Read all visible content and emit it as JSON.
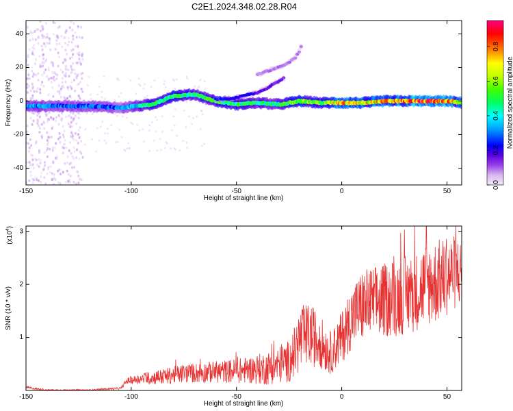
{
  "figure": {
    "title": "C2E1.2024.348.02.28.R04"
  },
  "chart_data": [
    {
      "type": "heatmap",
      "title": "C2E1.2024.348.02.28.R04",
      "xlabel": "Height of straight line (km)",
      "ylabel": "Frequency (Hz)",
      "xlim": [
        -150,
        57
      ],
      "ylim": [
        -50,
        48
      ],
      "xticks": [
        -150,
        -100,
        -50,
        0,
        50
      ],
      "xtick_labels": [
        "-150",
        "-100",
        "-50",
        "0",
        "50"
      ],
      "yticks": [
        -40,
        -20,
        0,
        20,
        40
      ],
      "ytick_labels": [
        "-40",
        "-20",
        "0",
        "20",
        "40"
      ],
      "colorbar": {
        "label": "Normalized spectral amplitude",
        "range": [
          0,
          0.95
        ],
        "ticks": [
          0.0,
          0.2,
          0.4,
          0.6,
          0.8
        ],
        "tick_labels": [
          "0.0",
          "0.2",
          "0.4",
          "0.6",
          "0.8"
        ],
        "colormap": [
          "#f2e8f8",
          "#d7b8f0",
          "#9a40e8",
          "#5a00e0",
          "#0000ff",
          "#00a0ff",
          "#00ffff",
          "#00ff60",
          "#40ff00",
          "#c0ff00",
          "#ffff00",
          "#ff8000",
          "#ff0000",
          "#ff0080"
        ]
      },
      "grid": false,
      "ridges": [
        {
          "name": "main",
          "x": [
            -150,
            -120,
            -105,
            -90,
            -80,
            -70,
            -60,
            -50,
            -40,
            -30,
            -20,
            -10,
            0,
            10,
            20,
            30,
            40,
            50,
            57
          ],
          "y": [
            -3,
            -3,
            -4,
            -2,
            3,
            4,
            0,
            -2,
            -1,
            -2,
            0,
            -1,
            -1,
            -1,
            0,
            0,
            0,
            0,
            -1
          ],
          "amplitude": [
            0.4,
            0.35,
            0.35,
            0.55,
            0.6,
            0.5,
            0.6,
            0.55,
            0.55,
            0.5,
            0.7,
            0.6,
            0.8,
            0.75,
            0.8,
            0.85,
            0.9,
            0.85,
            0.7
          ]
        },
        {
          "name": "rising",
          "x": [
            -60,
            -50,
            -40,
            -35,
            -30,
            -27
          ],
          "y": [
            1,
            2,
            5,
            8,
            12,
            14
          ],
          "amplitude": [
            0.3,
            0.3,
            0.25,
            0.2,
            0.2,
            0.15
          ]
        },
        {
          "name": "upper-branch",
          "x": [
            -40,
            -35,
            -30,
            -25,
            -22,
            -20,
            -19
          ],
          "y": [
            16,
            18,
            20,
            23,
            26,
            30,
            33
          ],
          "amplitude": [
            0.12,
            0.12,
            0.12,
            0.12,
            0.12,
            0.12,
            0.1
          ]
        }
      ],
      "broadband": {
        "x_range": [
          -150,
          -123
        ],
        "y_range": [
          -50,
          48
        ],
        "amplitude": 0.08
      }
    },
    {
      "type": "line",
      "xlabel": "Height of straight line (km)",
      "ylabel": "SNR (10 * v/v)",
      "yscale_label": "(x10",
      "yscale_exp": "4",
      "yscale_close": ")",
      "xlim": [
        -150,
        57
      ],
      "ylim": [
        0,
        3.1
      ],
      "xticks": [
        -150,
        -100,
        -50,
        0,
        50
      ],
      "xtick_labels": [
        "-150",
        "-100",
        "-50",
        "0",
        "50"
      ],
      "yticks": [
        1,
        2,
        3
      ],
      "ytick_labels": [
        "1",
        "2",
        "3"
      ],
      "grid": false,
      "color": "#e83030",
      "series_envelope": {
        "x": [
          -150,
          -145,
          -140,
          -120,
          -105,
          -102,
          -95,
          -85,
          -75,
          -65,
          -55,
          -45,
          -35,
          -30,
          -25,
          -22,
          -20,
          -15,
          -10,
          -5,
          0,
          5,
          10,
          15,
          20,
          25,
          30,
          35,
          40,
          45,
          50,
          55,
          57
        ],
        "mean": [
          0.06,
          0.03,
          0.01,
          0.01,
          0.04,
          0.18,
          0.22,
          0.26,
          0.32,
          0.34,
          0.36,
          0.38,
          0.42,
          0.48,
          0.55,
          0.75,
          0.95,
          1.05,
          0.9,
          0.7,
          1.0,
          1.4,
          1.6,
          1.65,
          1.7,
          1.75,
          1.8,
          1.85,
          2.0,
          2.05,
          2.15,
          2.25,
          2.2
        ],
        "amp": [
          0.02,
          0.02,
          0.01,
          0.01,
          0.02,
          0.06,
          0.1,
          0.15,
          0.18,
          0.2,
          0.22,
          0.25,
          0.32,
          0.35,
          0.4,
          0.5,
          0.65,
          0.6,
          0.5,
          0.4,
          0.5,
          0.6,
          0.7,
          0.7,
          0.7,
          0.75,
          0.75,
          0.75,
          0.8,
          0.8,
          0.75,
          0.7,
          0.6
        ]
      }
    }
  ]
}
